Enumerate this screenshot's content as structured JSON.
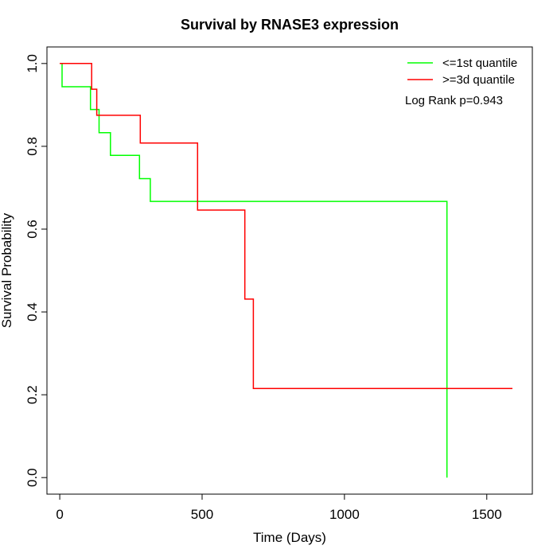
{
  "chart_data": {
    "type": "line",
    "title": "Survival by RNASE3 expression",
    "xlabel": "Time (Days)",
    "ylabel": "Survival Probability",
    "xlim": [
      -45,
      1660
    ],
    "ylim": [
      -0.04,
      1.04
    ],
    "x_ticks": [
      0,
      500,
      1000,
      1500
    ],
    "x_tick_labels": [
      "0",
      "500",
      "1000",
      "1500"
    ],
    "y_ticks": [
      0.0,
      0.2,
      0.4,
      0.6,
      0.8,
      1.0
    ],
    "y_tick_labels": [
      "0.0",
      "0.2",
      "0.4",
      "0.6",
      "0.8",
      "1.0"
    ],
    "grid": false,
    "legend_position": "top-right",
    "annotation": "Log Rank p=0.943",
    "series": [
      {
        "name": "<=1st quantile",
        "color": "#00ff00",
        "step": true,
        "x": [
          0,
          8,
          108,
          138,
          178,
          280,
          318,
          1360,
          1360
        ],
        "y": [
          1.0,
          0.944,
          0.889,
          0.833,
          0.778,
          0.722,
          0.667,
          0.667,
          0.0
        ]
      },
      {
        "name": ">=3d quantile",
        "color": "#ff0000",
        "step": true,
        "x": [
          0,
          112,
          130,
          283,
          484,
          650,
          680,
          1590
        ],
        "y": [
          1.0,
          0.938,
          0.875,
          0.808,
          0.646,
          0.431,
          0.215,
          0.215
        ]
      }
    ]
  }
}
